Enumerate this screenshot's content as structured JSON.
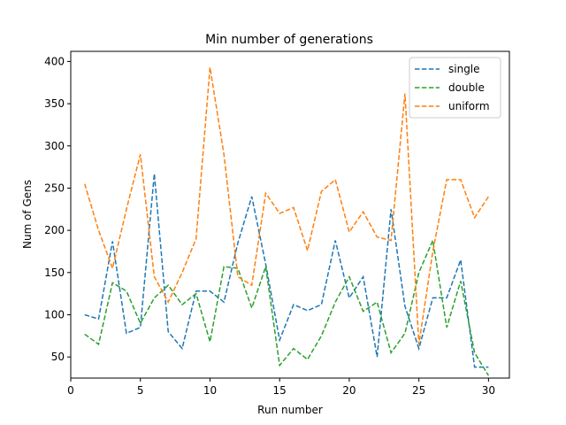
{
  "chart_data": {
    "type": "line",
    "title": "Min number of generations",
    "xlabel": "Run number",
    "ylabel": "Num of Gens",
    "xlim": [
      0,
      31.5
    ],
    "ylim": [
      25,
      412
    ],
    "xticks": [
      0,
      5,
      10,
      15,
      20,
      25,
      30
    ],
    "yticks": [
      50,
      100,
      150,
      200,
      250,
      300,
      350,
      400
    ],
    "grid": false,
    "legend_position": "top-right",
    "line_style": "dashed",
    "x": [
      1,
      2,
      3,
      4,
      5,
      6,
      7,
      8,
      9,
      10,
      11,
      12,
      13,
      14,
      15,
      16,
      17,
      18,
      19,
      20,
      21,
      22,
      23,
      24,
      25,
      26,
      27,
      28,
      29,
      30
    ],
    "series": [
      {
        "name": "single",
        "color": "#1f77b4",
        "values": [
          100,
          95,
          187,
          78,
          85,
          267,
          80,
          60,
          128,
          128,
          115,
          185,
          240,
          160,
          70,
          112,
          105,
          112,
          188,
          120,
          145,
          50,
          225,
          110,
          60,
          120,
          120,
          165,
          38,
          38
        ]
      },
      {
        "name": "double",
        "color": "#2ca02c",
        "values": [
          77,
          65,
          138,
          128,
          90,
          120,
          135,
          112,
          125,
          68,
          157,
          155,
          108,
          157,
          40,
          60,
          47,
          75,
          115,
          145,
          104,
          115,
          55,
          78,
          150,
          188,
          85,
          140,
          55,
          28
        ]
      },
      {
        "name": "uniform",
        "color": "#ff7f0e",
        "values": [
          255,
          200,
          155,
          225,
          290,
          145,
          115,
          150,
          190,
          393,
          290,
          145,
          135,
          244,
          220,
          227,
          176,
          246,
          260,
          198,
          222,
          192,
          188,
          362,
          65,
          175,
          260,
          260,
          215,
          240
        ]
      }
    ]
  }
}
